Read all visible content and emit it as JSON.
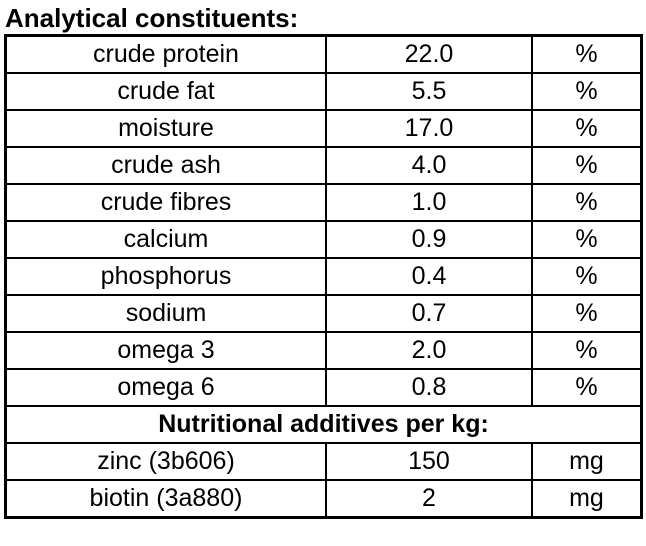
{
  "title": "Analytical constituents:",
  "table": {
    "rows": [
      {
        "name": "crude protein",
        "value": "22.0",
        "unit": "%"
      },
      {
        "name": "crude fat",
        "value": "5.5",
        "unit": "%"
      },
      {
        "name": "moisture",
        "value": "17.0",
        "unit": "%"
      },
      {
        "name": "crude ash",
        "value": "4.0",
        "unit": "%"
      },
      {
        "name": "crude fibres",
        "value": "1.0",
        "unit": "%"
      },
      {
        "name": "calcium",
        "value": "0.9",
        "unit": "%"
      },
      {
        "name": "phosphorus",
        "value": "0.4",
        "unit": "%"
      },
      {
        "name": "sodium",
        "value": "0.7",
        "unit": "%"
      },
      {
        "name": "omega 3",
        "value": "2.0",
        "unit": "%"
      },
      {
        "name": "omega 6",
        "value": "0.8",
        "unit": "%"
      }
    ],
    "section_header": "Nutritional additives per kg:",
    "additives": [
      {
        "name": "zinc (3b606)",
        "value": "150",
        "unit": "mg"
      },
      {
        "name": "biotin (3a880)",
        "value": "2",
        "unit": "mg"
      }
    ]
  },
  "colors": {
    "text": "#000000",
    "border": "#000000",
    "background": "#ffffff"
  }
}
